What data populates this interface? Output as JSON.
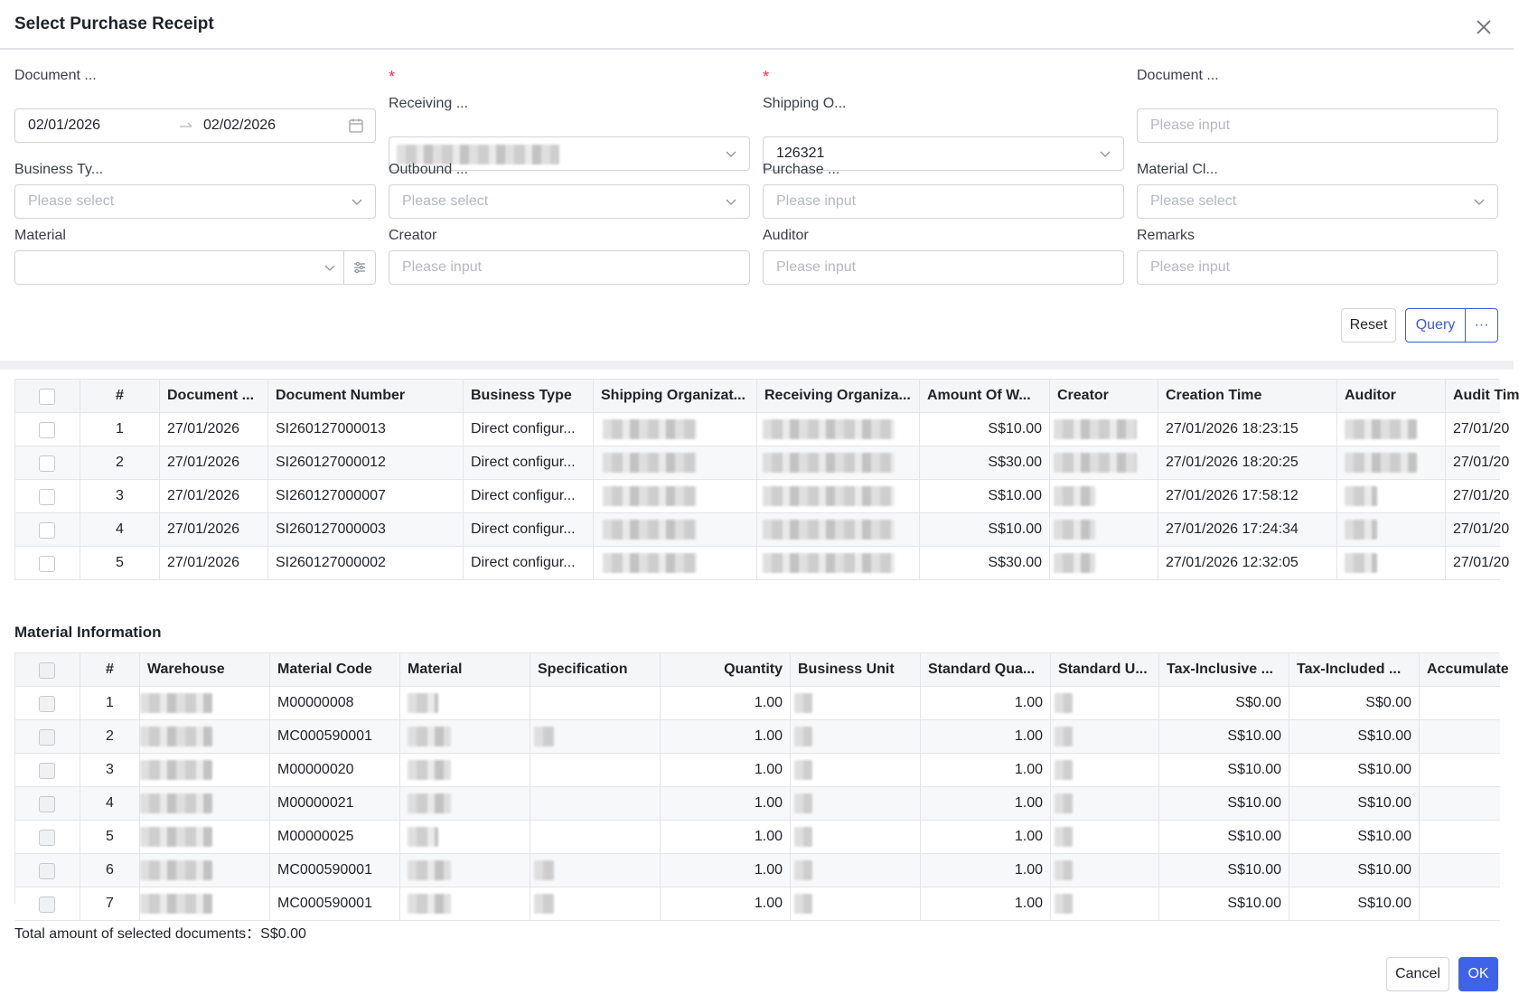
{
  "dialog": {
    "title": "Select Purchase Receipt"
  },
  "form": {
    "document_date": {
      "label": "Document ...",
      "start": "02/01/2026",
      "end": "02/02/2026"
    },
    "receiving_org": {
      "label": "Receiving ...",
      "required": "*"
    },
    "shipping_org": {
      "label": "Shipping O...",
      "required": "*",
      "value": "126321"
    },
    "document_no": {
      "label": "Document ...",
      "placeholder": "Please input"
    },
    "business_type": {
      "label": "Business Ty...",
      "placeholder": "Please select"
    },
    "outbound": {
      "label": "Outbound ...",
      "placeholder": "Please select"
    },
    "purchase": {
      "label": "Purchase ...",
      "placeholder": "Please input"
    },
    "material_class": {
      "label": "Material Cl...",
      "placeholder": "Please select"
    },
    "material": {
      "label": "Material"
    },
    "creator": {
      "label": "Creator",
      "placeholder": "Please input"
    },
    "auditor": {
      "label": "Auditor",
      "placeholder": "Please input"
    },
    "remarks": {
      "label": "Remarks",
      "placeholder": "Please input"
    },
    "reset_label": "Reset",
    "query_label": "Query",
    "more_label": "···"
  },
  "documents": {
    "columns": [
      "#",
      "Document ...",
      "Document Number",
      "Business Type",
      "Shipping Organizat...",
      "Receiving Organiza...",
      "Amount Of W...",
      "Creator",
      "Creation Time",
      "Auditor",
      "Audit Tim"
    ],
    "rows": [
      {
        "no": "1",
        "date": "27/01/2026",
        "number": "SI260127000013",
        "type": "Direct configur...",
        "amount": "S$10.00",
        "created": "27/01/2026 18:23:15",
        "audit": "27/01/20"
      },
      {
        "no": "2",
        "date": "27/01/2026",
        "number": "SI260127000012",
        "type": "Direct configur...",
        "amount": "S$30.00",
        "created": "27/01/2026 18:20:25",
        "audit": "27/01/20"
      },
      {
        "no": "3",
        "date": "27/01/2026",
        "number": "SI260127000007",
        "type": "Direct configur...",
        "amount": "S$10.00",
        "created": "27/01/2026 17:58:12",
        "audit": "27/01/20"
      },
      {
        "no": "4",
        "date": "27/01/2026",
        "number": "SI260127000003",
        "type": "Direct configur...",
        "amount": "S$10.00",
        "created": "27/01/2026 17:24:34",
        "audit": "27/01/20"
      },
      {
        "no": "5",
        "date": "27/01/2026",
        "number": "SI260127000002",
        "type": "Direct configur...",
        "amount": "S$30.00",
        "created": "27/01/2026 12:32:05",
        "audit": "27/01/20"
      }
    ]
  },
  "materials": {
    "title": "Material Information",
    "columns": [
      "#",
      "Warehouse",
      "Material Code",
      "Material",
      "Specification",
      "Quantity",
      "Business Unit",
      "Standard Qua...",
      "Standard U...",
      "Tax-Inclusive ...",
      "Tax-Included ...",
      "Accumulate"
    ],
    "rows": [
      {
        "no": "1",
        "code": "M00000008",
        "qty": "1.00",
        "std_qty": "1.00",
        "tax_incl": "S$0.00",
        "tax_included": "S$0.00"
      },
      {
        "no": "2",
        "code": "MC000590001",
        "qty": "1.00",
        "std_qty": "1.00",
        "tax_incl": "S$10.00",
        "tax_included": "S$10.00"
      },
      {
        "no": "3",
        "code": "M00000020",
        "qty": "1.00",
        "std_qty": "1.00",
        "tax_incl": "S$10.00",
        "tax_included": "S$10.00"
      },
      {
        "no": "4",
        "code": "M00000021",
        "qty": "1.00",
        "std_qty": "1.00",
        "tax_incl": "S$10.00",
        "tax_included": "S$10.00"
      },
      {
        "no": "5",
        "code": "M00000025",
        "qty": "1.00",
        "std_qty": "1.00",
        "tax_incl": "S$10.00",
        "tax_included": "S$10.00"
      },
      {
        "no": "6",
        "code": "MC000590001",
        "qty": "1.00",
        "std_qty": "1.00",
        "tax_incl": "S$10.00",
        "tax_included": "S$10.00"
      },
      {
        "no": "7",
        "code": "MC000590001",
        "qty": "1.00",
        "std_qty": "1.00",
        "tax_incl": "S$10.00",
        "tax_included": "S$10.00"
      }
    ]
  },
  "footer": {
    "total_label": "Total amount of selected documents：",
    "total_value": "S$0.00",
    "cancel_label": "Cancel",
    "ok_label": "OK"
  },
  "colors": {
    "primary": "#3e63e8",
    "required": "#f5334d",
    "border": "#d0d3d9"
  }
}
